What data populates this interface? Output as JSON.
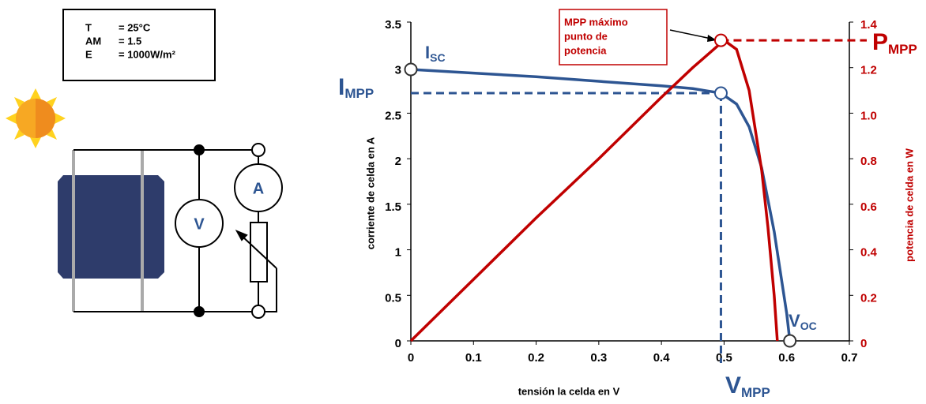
{
  "chart_data": {
    "type": "line",
    "xlabel": "tensión la celda en V",
    "ylabel": "corriente de celda en A",
    "y2label": "potencia de celda en W",
    "xlim": [
      0,
      0.7
    ],
    "xticks": [
      0,
      0.1,
      0.2,
      0.3,
      0.4,
      0.5,
      0.6,
      0.7
    ],
    "ylim": [
      0,
      3.5
    ],
    "yticks": [
      0,
      0.5,
      1,
      1.5,
      2,
      2.5,
      3,
      3.5
    ],
    "y2lim": [
      0,
      1.4
    ],
    "y2ticks": [
      0,
      0.2,
      0.4,
      0.6,
      0.8,
      {
        "value": 1,
        "label": "1.0"
      },
      1.2,
      1.4
    ],
    "series": [
      {
        "color": "#2d5592",
        "x": [
          0,
          0.1,
          0.2,
          0.3,
          0.4,
          0.45,
          0.495,
          0.52,
          0.54,
          0.56,
          0.58,
          0.59,
          0.6,
          0.605
        ],
        "values": [
          2.98,
          2.94,
          2.9,
          2.85,
          2.8,
          2.77,
          2.72,
          2.6,
          2.35,
          1.9,
          1.2,
          0.75,
          0.3,
          0
        ]
      },
      {
        "color": "#c00000",
        "axis": "y2",
        "x": [
          0,
          0.1,
          0.2,
          0.3,
          0.4,
          0.45,
          0.5,
          0.52,
          0.54,
          0.56,
          0.57,
          0.58,
          0.585
        ],
        "values": [
          0,
          0.27,
          0.54,
          0.8,
          1.07,
          1.2,
          1.32,
          1.28,
          1.1,
          0.75,
          0.5,
          0.2,
          0
        ]
      }
    ],
    "mpp": {
      "x": 0.495,
      "current": 2.72,
      "power": 1.32
    },
    "annotations": {
      "isc": {
        "main": "I",
        "sub": "SC"
      },
      "impp": {
        "main": "I",
        "sub": "MPP"
      },
      "voc": {
        "main": "V",
        "sub": "OC"
      },
      "vmpp": {
        "main": "V",
        "sub": "MPP"
      },
      "pmpp": {
        "main": "P",
        "sub": "MPP"
      },
      "mpp_note": [
        "MPP máximo",
        "punto de",
        "potencia"
      ]
    }
  },
  "diagram": {
    "conditions": [
      [
        "T",
        "= 25°C"
      ],
      [
        "AM",
        "= 1.5"
      ],
      [
        "E",
        "= 1000W/m²"
      ]
    ],
    "voltmeter": "V",
    "ammeter": "A"
  }
}
